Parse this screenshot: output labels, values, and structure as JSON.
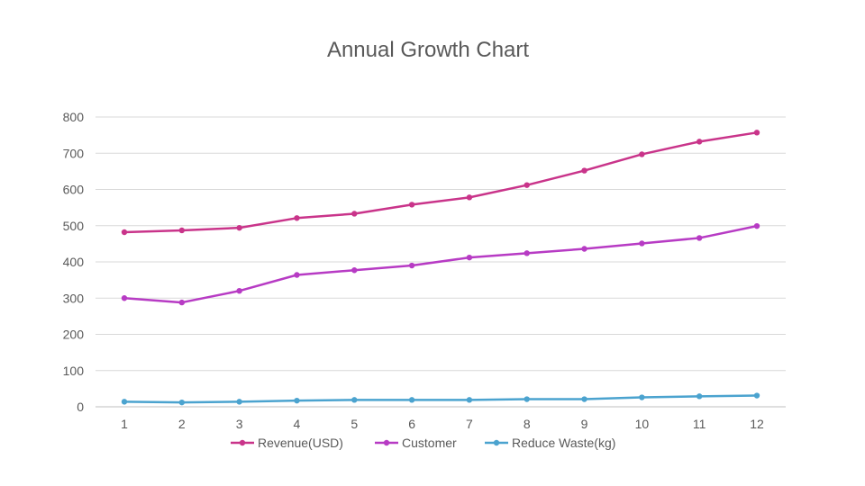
{
  "chart_data": {
    "type": "line",
    "title": "Annual Growth Chart",
    "xlabel": "",
    "ylabel": "",
    "categories": [
      "1",
      "2",
      "3",
      "4",
      "5",
      "6",
      "7",
      "8",
      "9",
      "10",
      "11",
      "12"
    ],
    "ylim": [
      0,
      800
    ],
    "yticks": [
      0,
      100,
      200,
      300,
      400,
      500,
      600,
      700,
      800
    ],
    "grid": true,
    "legend_position": "bottom",
    "series": [
      {
        "name": "Revenue(USD)",
        "color": "#c9348a",
        "values": [
          482,
          487,
          494,
          521,
          533,
          558,
          578,
          612,
          652,
          697,
          732,
          757
        ]
      },
      {
        "name": "Customer",
        "color": "#b73bc4",
        "values": [
          300,
          288,
          320,
          364,
          377,
          390,
          412,
          424,
          436,
          451,
          466,
          499
        ]
      },
      {
        "name": "Reduce Waste(kg)",
        "color": "#4ba3cf",
        "values": [
          14,
          12,
          14,
          17,
          19,
          19,
          19,
          21,
          21,
          26,
          29,
          31
        ]
      }
    ]
  }
}
